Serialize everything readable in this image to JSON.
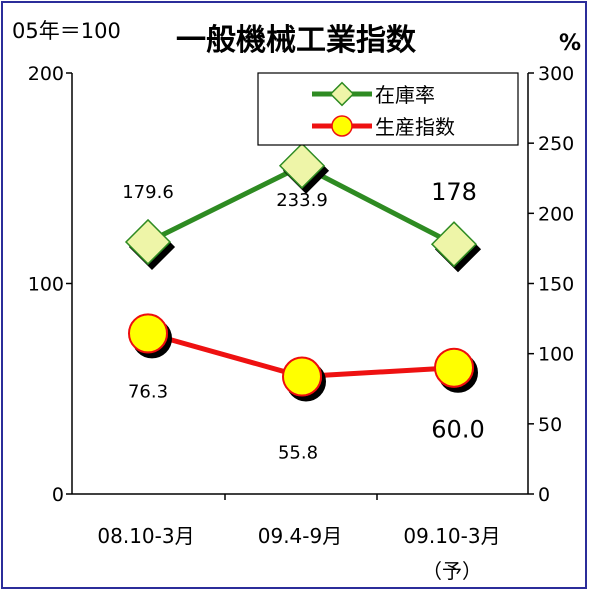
{
  "chart_data": {
    "type": "line",
    "title": "一般機械工業指数",
    "left_axis_unit": "05年＝100",
    "right_axis_unit": "%",
    "categories": [
      "08.10-3月",
      "09.4-9月",
      "09.10-3月"
    ],
    "category_sublabels": [
      "",
      "",
      "（予）"
    ],
    "left_axis": {
      "ylim": [
        0,
        200
      ],
      "ticks": [
        0,
        100,
        200
      ]
    },
    "right_axis": {
      "ylim": [
        0,
        300
      ],
      "ticks": [
        0,
        50,
        100,
        150,
        200,
        250,
        300
      ]
    },
    "grid": false,
    "legend_position": "top-right",
    "series": [
      {
        "name": "在庫率",
        "axis": "right",
        "values": [
          179.6,
          233.9,
          178
        ],
        "labels": [
          "179.6",
          "233.9",
          "178"
        ],
        "line_color": "#2e8b22",
        "marker": "diamond",
        "marker_color": "#eef5a8"
      },
      {
        "name": "生産指数",
        "axis": "left",
        "values": [
          76.3,
          55.8,
          60.0
        ],
        "labels": [
          "76.3",
          "55.8",
          "60.0"
        ],
        "line_color": "#ee1111",
        "marker": "circle",
        "marker_color": "#ffff00"
      }
    ]
  }
}
